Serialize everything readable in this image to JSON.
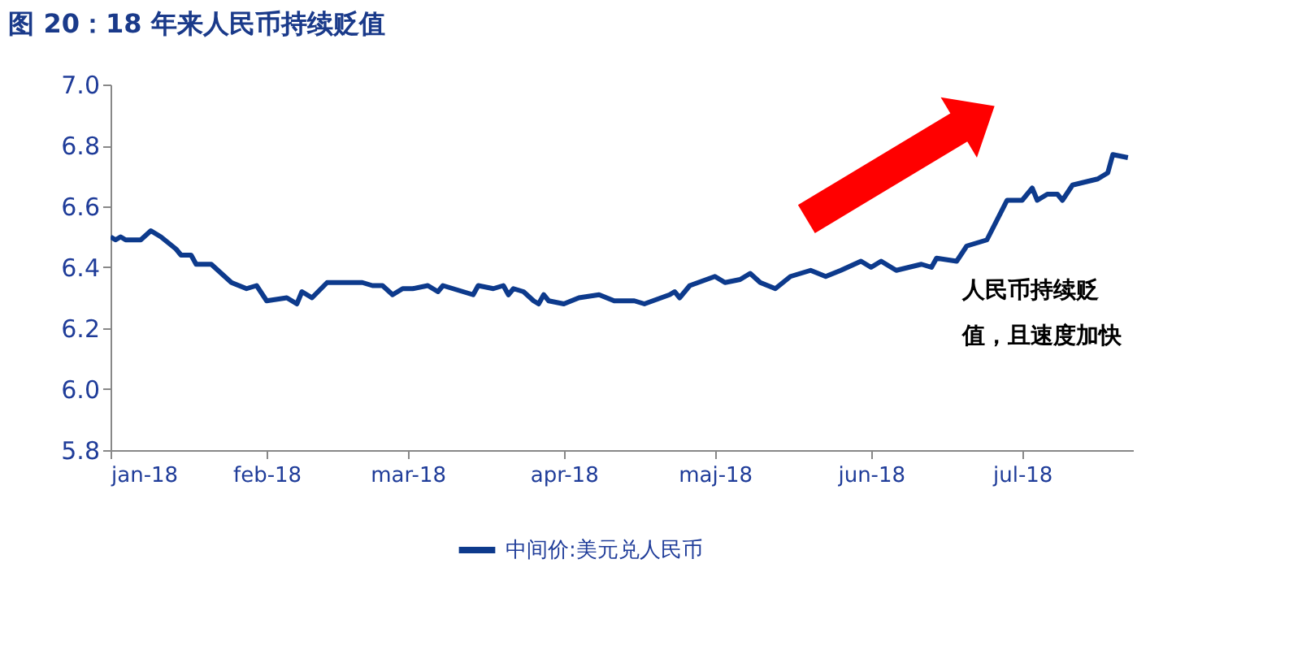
{
  "chart_data": {
    "type": "line",
    "title": "图 20：18 年来人民币持续贬值",
    "x": [
      "2018-01-01",
      "2018-01-02",
      "2018-01-03",
      "2018-01-04",
      "2018-01-07",
      "2018-01-09",
      "2018-01-11",
      "2018-01-14",
      "2018-01-15",
      "2018-01-17",
      "2018-01-18",
      "2018-01-21",
      "2018-01-23",
      "2018-01-25",
      "2018-01-28",
      "2018-01-30",
      "2018-02-01",
      "2018-02-05",
      "2018-02-07",
      "2018-02-08",
      "2018-02-10",
      "2018-02-13",
      "2018-02-20",
      "2018-02-22",
      "2018-02-24",
      "2018-02-26",
      "2018-02-28",
      "2018-03-02",
      "2018-03-05",
      "2018-03-07",
      "2018-03-08",
      "2018-03-12",
      "2018-03-14",
      "2018-03-15",
      "2018-03-18",
      "2018-03-20",
      "2018-03-21",
      "2018-03-22",
      "2018-03-24",
      "2018-03-26",
      "2018-03-27",
      "2018-03-28",
      "2018-03-29",
      "2018-04-01",
      "2018-04-04",
      "2018-04-08",
      "2018-04-11",
      "2018-04-15",
      "2018-04-17",
      "2018-04-22",
      "2018-04-23",
      "2018-04-24",
      "2018-04-26",
      "2018-05-01",
      "2018-05-03",
      "2018-05-06",
      "2018-05-08",
      "2018-05-10",
      "2018-05-13",
      "2018-05-16",
      "2018-05-20",
      "2018-05-23",
      "2018-05-26",
      "2018-05-30",
      "2018-06-01",
      "2018-06-03",
      "2018-06-06",
      "2018-06-11",
      "2018-06-13",
      "2018-06-14",
      "2018-06-18",
      "2018-06-20",
      "2018-06-24",
      "2018-06-28",
      "2018-07-01",
      "2018-07-03",
      "2018-07-04",
      "2018-07-06",
      "2018-07-08",
      "2018-07-09",
      "2018-07-11",
      "2018-07-16",
      "2018-07-18",
      "2018-07-19",
      "2018-07-22"
    ],
    "series": [
      {
        "name": "中间价:美元兑人民币",
        "color": "#0d3a8c",
        "values": [
          6.5,
          6.49,
          6.5,
          6.49,
          6.49,
          6.52,
          6.5,
          6.46,
          6.44,
          6.44,
          6.41,
          6.41,
          6.38,
          6.35,
          6.33,
          6.34,
          6.29,
          6.3,
          6.28,
          6.32,
          6.3,
          6.35,
          6.35,
          6.34,
          6.34,
          6.31,
          6.33,
          6.33,
          6.34,
          6.32,
          6.34,
          6.32,
          6.31,
          6.34,
          6.33,
          6.34,
          6.31,
          6.33,
          6.32,
          6.29,
          6.28,
          6.31,
          6.29,
          6.28,
          6.3,
          6.31,
          6.29,
          6.29,
          6.28,
          6.31,
          6.32,
          6.3,
          6.34,
          6.37,
          6.35,
          6.36,
          6.38,
          6.35,
          6.33,
          6.37,
          6.39,
          6.37,
          6.39,
          6.42,
          6.4,
          6.42,
          6.39,
          6.41,
          6.4,
          6.43,
          6.42,
          6.47,
          6.49,
          6.62,
          6.62,
          6.66,
          6.62,
          6.64,
          6.64,
          6.62,
          6.67,
          6.69,
          6.71,
          6.77,
          6.76
        ]
      }
    ],
    "xlim": [
      "2018-01-01",
      "2018-07-23"
    ],
    "xticks": [
      {
        "value": "2018-01-01",
        "label": "jan-18"
      },
      {
        "value": "2018-02-01",
        "label": "feb-18"
      },
      {
        "value": "2018-03-01",
        "label": "mar-18"
      },
      {
        "value": "2018-04-01",
        "label": "apr-18"
      },
      {
        "value": "2018-05-01",
        "label": "maj-18"
      },
      {
        "value": "2018-06-01",
        "label": "jun-18"
      },
      {
        "value": "2018-07-01",
        "label": "jul-18"
      }
    ],
    "ylim": [
      5.8,
      7.0
    ],
    "yticks": [
      {
        "value": 5.8,
        "label": "5.8"
      },
      {
        "value": 6,
        "label": "6.0"
      },
      {
        "value": 6.2,
        "label": "6.2"
      },
      {
        "value": 6.4,
        "label": "6.4"
      },
      {
        "value": 6.6,
        "label": "6.6"
      },
      {
        "value": 6.8,
        "label": "6.8"
      },
      {
        "value": 7,
        "label": "7.0"
      }
    ],
    "grid": false,
    "legend": "bottom",
    "annotations": [
      "人民币持续贬值，且速度加快"
    ]
  }
}
